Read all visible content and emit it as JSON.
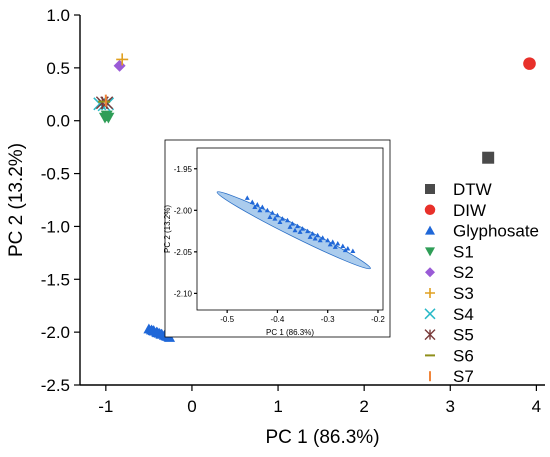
{
  "chart_data": [
    {
      "type": "scatter",
      "xlabel": "PC 1 (86.3%)",
      "ylabel": "PC 2 (13.2%)",
      "xlim": [
        -1.3,
        4.1
      ],
      "ylim": [
        -2.5,
        1.0
      ],
      "xticks": [
        -1,
        0,
        1,
        2,
        3,
        4
      ],
      "yticks": [
        -2.5,
        -2.0,
        -1.5,
        -1.0,
        -0.5,
        0.0,
        0.5,
        1.0
      ],
      "xtick_labels": [
        "-1",
        "0",
        "1",
        "2",
        "3",
        "4"
      ],
      "ytick_labels": [
        "-2.5",
        "-2.0",
        "-1.5",
        "-1.0",
        "-0.5",
        "0.0",
        "0.5",
        "1.0"
      ],
      "legend_position": "right",
      "series": [
        {
          "name": "DTW",
          "marker": "square",
          "color": "#4a4a4a",
          "points": [
            [
              3.44,
              -0.35
            ]
          ]
        },
        {
          "name": "DIW",
          "marker": "circle",
          "color": "#e8302a",
          "points": [
            [
              3.92,
              0.54
            ]
          ]
        },
        {
          "name": "Glyphosate",
          "marker": "triangle-up",
          "color": "#1f67d8",
          "points": [
            [
              -0.5,
              -1.97
            ],
            [
              -0.47,
              -1.98
            ],
            [
              -0.44,
              -1.99
            ],
            [
              -0.41,
              -2.0
            ],
            [
              -0.38,
              -2.01
            ],
            [
              -0.35,
              -2.02
            ],
            [
              -0.32,
              -2.03
            ],
            [
              -0.29,
              -2.04
            ],
            [
              -0.26,
              -2.05
            ],
            [
              -0.45,
              -1.985
            ],
            [
              -0.4,
              -2.005
            ],
            [
              -0.36,
              -2.02
            ],
            [
              -0.3,
              -2.035
            ],
            [
              -0.27,
              -2.045
            ]
          ]
        },
        {
          "name": "S1",
          "marker": "triangle-down",
          "color": "#2f9e57",
          "points": [
            [
              -1.01,
              0.03
            ],
            [
              -0.97,
              0.03
            ],
            [
              -0.99,
              0.05
            ]
          ]
        },
        {
          "name": "S2",
          "marker": "diamond",
          "color": "#9a5bd6",
          "points": [
            [
              -0.84,
              0.52
            ]
          ]
        },
        {
          "name": "S3",
          "marker": "plus",
          "color": "#e0a020",
          "points": [
            [
              -0.81,
              0.58
            ]
          ]
        },
        {
          "name": "S4",
          "marker": "x",
          "color": "#28b9c8",
          "points": [
            [
              -1.07,
              0.16
            ],
            [
              -1.02,
              0.15
            ],
            [
              -0.98,
              0.16
            ]
          ]
        },
        {
          "name": "S5",
          "marker": "asterisk",
          "color": "#7a3a3a",
          "points": [
            [
              -1.04,
              0.17
            ],
            [
              -0.99,
              0.17
            ]
          ]
        },
        {
          "name": "S6",
          "marker": "hline",
          "color": "#8f8f1a",
          "points": [
            [
              -1.02,
              0.18
            ]
          ]
        },
        {
          "name": "S7",
          "marker": "vline",
          "color": "#f0853a",
          "points": [
            [
              -1.0,
              0.19
            ]
          ]
        }
      ],
      "annotations": [
        {
          "type": "arrow",
          "from": [
            -0.1,
            -1.67
          ],
          "to": [
            -0.3,
            -1.97
          ]
        }
      ]
    },
    {
      "type": "scatter",
      "role": "inset",
      "xlabel": "PC 1 (86.3%)",
      "ylabel": "PC 2 (13.2%)",
      "xlim": [
        -0.56,
        -0.19
      ],
      "ylim": [
        -2.12,
        -1.925
      ],
      "xticks": [
        -0.5,
        -0.4,
        -0.3,
        -0.2
      ],
      "yticks": [
        -1.95,
        -2.0,
        -2.05,
        -2.1
      ],
      "xtick_labels": [
        "-0.5",
        "-0.4",
        "-0.3",
        "-0.2"
      ],
      "ytick_labels": [
        "-1.95",
        "-2.00",
        "-2.05",
        "-2.10"
      ],
      "ellipse": {
        "from": [
          -0.52,
          -1.978
        ],
        "to": [
          -0.215,
          -2.07
        ],
        "color": "#9cc3ea",
        "edge": "#2b6fc6"
      },
      "series": [
        {
          "name": "Glyphosate",
          "marker": "triangle-up",
          "color": "#1f67d8",
          "points": [
            [
              -0.46,
              -1.985
            ],
            [
              -0.45,
              -1.99
            ],
            [
              -0.44,
              -1.993
            ],
            [
              -0.43,
              -1.996
            ],
            [
              -0.42,
              -2.0
            ],
            [
              -0.41,
              -2.003
            ],
            [
              -0.4,
              -2.006
            ],
            [
              -0.39,
              -2.01
            ],
            [
              -0.38,
              -2.012
            ],
            [
              -0.37,
              -2.016
            ],
            [
              -0.36,
              -2.019
            ],
            [
              -0.35,
              -2.022
            ],
            [
              -0.34,
              -2.025
            ],
            [
              -0.33,
              -2.028
            ],
            [
              -0.32,
              -2.03
            ],
            [
              -0.31,
              -2.033
            ],
            [
              -0.3,
              -2.036
            ],
            [
              -0.29,
              -2.038
            ],
            [
              -0.28,
              -2.04
            ],
            [
              -0.27,
              -2.043
            ],
            [
              -0.26,
              -2.046
            ],
            [
              -0.25,
              -2.049
            ],
            [
              -0.435,
              -2.0
            ],
            [
              -0.415,
              -2.008
            ],
            [
              -0.395,
              -2.014
            ],
            [
              -0.375,
              -2.02
            ],
            [
              -0.355,
              -2.026
            ],
            [
              -0.335,
              -2.032
            ],
            [
              -0.315,
              -2.036
            ],
            [
              -0.295,
              -2.041
            ],
            [
              -0.445,
              -1.996
            ],
            [
              -0.405,
              -2.01
            ],
            [
              -0.365,
              -2.024
            ],
            [
              -0.325,
              -2.034
            ],
            [
              -0.285,
              -2.044
            ],
            [
              -0.265,
              -2.048
            ]
          ]
        }
      ]
    }
  ]
}
